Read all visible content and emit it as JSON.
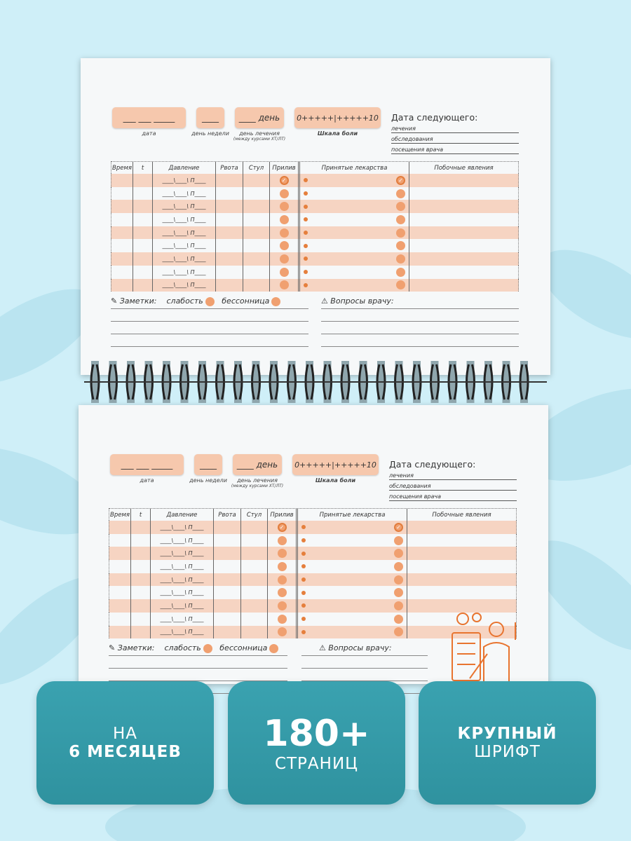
{
  "colors": {
    "background": "#cfeff8",
    "accent": "#f6c8ad",
    "dot": "#f0a070",
    "badge": "#3aa2b0"
  },
  "sheet": {
    "date_blank": "___ ___ _____",
    "date_label": "дата",
    "weekday_blank": "____",
    "weekday_label": "день недели",
    "treatment_day": "____ день",
    "treatment_label": "день лечения",
    "treatment_sub": "(между курсами ХТ/ЛТ)",
    "pain_scale": "0+++++|+++++10",
    "pain_label": "Шкала боли",
    "next_title": "Дата следующего:",
    "next_items": [
      "лечения",
      "обследования",
      "посещения врача"
    ],
    "columns": [
      "Время",
      "t",
      "Давление",
      "Рвота",
      "Стул",
      "Прилив",
      "Принятые лекарства",
      "Побочные явления"
    ],
    "pressure_template": "____\\____\\ П____",
    "rows": 9,
    "notes_label": "Заметки:",
    "weakness": "слабость",
    "insomnia": "бессонница",
    "questions_label": "Вопросы врачу:"
  },
  "badges": [
    {
      "line1": "НА",
      "line2": "6 МЕСЯЦЕВ"
    },
    {
      "line1": "180+",
      "line2": "СТРАНИЦ"
    },
    {
      "line1": "КРУПНЫЙ",
      "line2": "ШРИФТ"
    }
  ]
}
